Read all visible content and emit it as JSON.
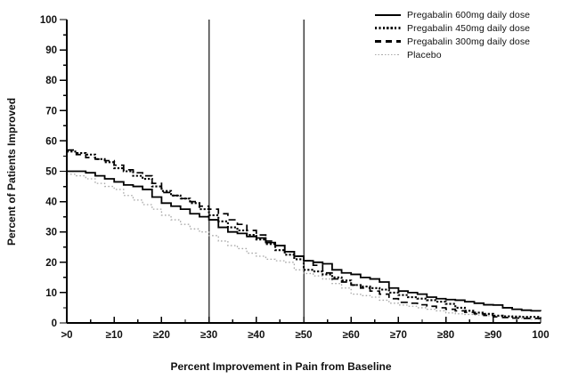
{
  "chart_data": {
    "type": "line",
    "subtype": "step-responder-curves",
    "title": "",
    "xlabel": "Percent Improvement in Pain from Baseline",
    "ylabel": "Percent of Patients Improved",
    "xlim": [
      0,
      100
    ],
    "ylim": [
      0,
      100
    ],
    "grid": false,
    "legend_position": "top-right",
    "x_tick_values": [
      0,
      10,
      20,
      30,
      40,
      50,
      60,
      70,
      80,
      90,
      100
    ],
    "x_tick_labels": [
      ">0",
      "≥10",
      "≥20",
      "≥30",
      "≥40",
      "≥50",
      "≥60",
      "≥70",
      "≥80",
      "≥90",
      "100"
    ],
    "y_tick_values": [
      0,
      10,
      20,
      30,
      40,
      50,
      60,
      70,
      80,
      90,
      100
    ],
    "y_tick_labels": [
      "0",
      "10",
      "20",
      "30",
      "40",
      "50",
      "60",
      "70",
      "80",
      "90",
      "100"
    ],
    "minor_tick_step": 5,
    "reference_lines_x": [
      30,
      50
    ],
    "axis_color": "#000000",
    "reference_line_color": "#3f3f3f",
    "x": [
      0,
      2,
      4,
      6,
      8,
      10,
      12,
      14,
      16,
      18,
      20,
      22,
      24,
      26,
      28,
      30,
      32,
      34,
      36,
      38,
      40,
      42,
      44,
      46,
      48,
      50,
      52,
      54,
      56,
      58,
      60,
      62,
      64,
      66,
      68,
      70,
      72,
      74,
      76,
      78,
      80,
      82,
      84,
      86,
      88,
      90,
      92,
      94,
      96,
      98,
      100
    ],
    "series": [
      {
        "name": "Pregabalin 600mg daily dose",
        "style": "solid",
        "color": "#000000",
        "values": [
          50,
          50,
          49.5,
          48.5,
          47.5,
          46.5,
          45.5,
          45,
          44,
          41.5,
          39.5,
          38.5,
          37.5,
          36,
          35,
          34,
          31.5,
          30,
          29.5,
          28.5,
          28,
          26.5,
          25.5,
          23.5,
          22,
          20.5,
          20,
          19.5,
          17.5,
          16.5,
          16,
          15,
          14.5,
          13.5,
          11.5,
          10.5,
          10,
          9.5,
          8.5,
          8,
          7.7,
          7.5,
          7,
          6.5,
          6,
          5.9,
          5,
          4.5,
          4.2,
          4,
          3.9
        ]
      },
      {
        "name": "Pregabalin 450mg daily dose",
        "style": "dotted-heavy",
        "color": "#000000",
        "values": [
          56.5,
          56,
          55.5,
          54,
          53,
          51,
          50,
          48.5,
          47.5,
          45,
          43.5,
          42,
          41,
          39.5,
          37.5,
          35.5,
          33.5,
          31.5,
          30.5,
          29,
          27.5,
          26,
          24,
          22.5,
          21,
          17.5,
          17,
          16,
          15,
          14,
          12.5,
          12,
          11.5,
          11,
          10,
          9.2,
          8.5,
          8,
          7.5,
          7,
          6.3,
          5,
          4,
          3.4,
          3,
          2.4,
          2.2,
          2.1,
          2,
          2,
          1.9
        ]
      },
      {
        "name": "Pregabalin 300mg daily dose",
        "style": "dashed",
        "color": "#000000",
        "values": [
          57,
          55.5,
          54.5,
          54,
          53.5,
          52,
          50.5,
          49.5,
          48.5,
          46,
          43,
          42,
          41,
          40,
          38.5,
          37.5,
          36,
          34,
          32.5,
          30.5,
          29,
          27,
          25.5,
          23.5,
          22,
          20.5,
          19,
          16.5,
          14.5,
          13.5,
          12.5,
          11.5,
          10.5,
          9.5,
          8,
          6.8,
          6.5,
          6,
          5.5,
          5,
          4.5,
          4,
          3.5,
          3,
          2.5,
          2,
          1.8,
          1.6,
          1.5,
          1.5,
          1.4
        ]
      },
      {
        "name": "Placebo",
        "style": "dotted-fine",
        "color": "#a9a9a9",
        "values": [
          49,
          48.5,
          47.5,
          46,
          45,
          44,
          42,
          40.5,
          39,
          37.5,
          35.5,
          34,
          32.5,
          31,
          30,
          28.8,
          27,
          25.5,
          24.5,
          23,
          22,
          21,
          20.5,
          20,
          17.5,
          16.3,
          15.5,
          14.5,
          13,
          11.5,
          9.5,
          9,
          8.5,
          7.5,
          6.5,
          5.9,
          5.5,
          5,
          4.5,
          4,
          3.3,
          3,
          2.8,
          2.6,
          2.4,
          2.2,
          2,
          1.8,
          1.5,
          1.2,
          1
        ]
      }
    ]
  }
}
